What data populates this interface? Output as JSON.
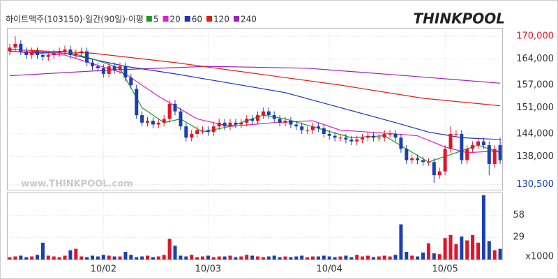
{
  "chart_data": {
    "type": "candlestick",
    "title": "하이트맥주(103150)·일간(90일)·이평",
    "logo": "THINKPOOL",
    "watermark": "www.THINKPOOL.com",
    "up_color": "#e0142a",
    "down_color": "#1a3fb0",
    "categories": [
      null,
      null,
      null,
      null,
      null,
      null,
      null,
      null,
      null,
      null,
      null,
      null,
      null,
      null,
      null,
      null,
      null,
      "10/02",
      null,
      null,
      null,
      null,
      null,
      null,
      null,
      null,
      null,
      null,
      null,
      null,
      null,
      null,
      null,
      null,
      null,
      null,
      "10/03",
      null,
      null,
      null,
      null,
      null,
      null,
      null,
      null,
      null,
      null,
      null,
      null,
      null,
      null,
      null,
      null,
      null,
      null,
      null,
      null,
      null,
      "10/04",
      null,
      null,
      null,
      null,
      null,
      null,
      null,
      null,
      null,
      null,
      null,
      null,
      null,
      null,
      null,
      null,
      null,
      null,
      null,
      null,
      "10/05",
      null,
      null,
      null,
      null,
      null,
      null,
      null,
      null,
      null,
      null
    ],
    "open": [
      166000,
      167000,
      168000,
      166000,
      165000,
      166000,
      165000,
      164500,
      165000,
      165500,
      166000,
      166500,
      165000,
      165500,
      166000,
      163000,
      162000,
      161500,
      160000,
      162000,
      161000,
      162000,
      159000,
      156000,
      149000,
      147000,
      147500,
      146500,
      147000,
      148000,
      152000,
      150000,
      146000,
      143000,
      144000,
      145000,
      145000,
      144500,
      146000,
      147000,
      146000,
      147000,
      146500,
      147000,
      148000,
      147500,
      149000,
      150000,
      149000,
      148000,
      147000,
      147500,
      146500,
      146000,
      145000,
      145000,
      146000,
      145500,
      144000,
      143500,
      143000,
      143000,
      142500,
      142000,
      142500,
      143000,
      143500,
      143000,
      143000,
      144000,
      144000,
      143000,
      140000,
      137000,
      137500,
      137000,
      136500,
      136500,
      133000,
      134000,
      140000,
      144000,
      144000,
      137000,
      140000,
      141000,
      142000,
      141000,
      136000,
      141000
    ],
    "high": [
      168000,
      170000,
      169000,
      167000,
      167000,
      167000,
      166000,
      166000,
      166500,
      167000,
      167500,
      167500,
      166500,
      167000,
      167000,
      164000,
      163000,
      162500,
      163000,
      163000,
      163000,
      163000,
      160000,
      157000,
      150000,
      148500,
      148500,
      148000,
      149000,
      153000,
      153000,
      151000,
      147000,
      145000,
      146000,
      146000,
      146000,
      147000,
      148000,
      148000,
      148000,
      148000,
      148000,
      149000,
      149000,
      150000,
      151000,
      151000,
      150000,
      149000,
      148500,
      148500,
      147500,
      147000,
      146000,
      147000,
      147000,
      146500,
      145000,
      144500,
      144000,
      144000,
      143500,
      143500,
      144000,
      144500,
      144500,
      144000,
      145000,
      145000,
      145000,
      144000,
      141000,
      138500,
      138500,
      138000,
      137500,
      137500,
      135000,
      141000,
      146000,
      145000,
      145000,
      141000,
      142000,
      143000,
      143000,
      142000,
      141000,
      143000
    ],
    "low": [
      165000,
      166000,
      165000,
      164000,
      164000,
      164000,
      163500,
      163500,
      164000,
      164500,
      165000,
      164000,
      164000,
      164500,
      162000,
      161000,
      160500,
      159000,
      159000,
      160000,
      160000,
      158000,
      156000,
      148000,
      146000,
      146000,
      145500,
      145500,
      146000,
      147000,
      149000,
      145000,
      142000,
      142000,
      143000,
      144000,
      143500,
      143500,
      145000,
      145000,
      145000,
      145500,
      145500,
      146000,
      146500,
      146500,
      148000,
      148000,
      147000,
      146000,
      146000,
      145500,
      145000,
      144000,
      144000,
      144000,
      144500,
      143000,
      142500,
      142000,
      142000,
      141500,
      141000,
      141000,
      141500,
      142000,
      142000,
      142000,
      142000,
      143000,
      142000,
      139000,
      136000,
      136000,
      136000,
      135500,
      135500,
      131000,
      132000,
      133000,
      139000,
      143000,
      136000,
      136000,
      139000,
      140000,
      140000,
      133000,
      135000,
      136000
    ],
    "close": [
      167000,
      168000,
      166000,
      165000,
      166000,
      165000,
      164500,
      165000,
      165500,
      166000,
      166500,
      165000,
      165500,
      166000,
      163000,
      162000,
      161500,
      160000,
      162000,
      161000,
      162000,
      159000,
      157000,
      149000,
      147000,
      147500,
      146500,
      147000,
      148000,
      152000,
      150000,
      146000,
      143000,
      144000,
      145000,
      145000,
      144500,
      146000,
      147000,
      146000,
      147000,
      146500,
      147000,
      148000,
      147500,
      149000,
      150000,
      149000,
      148000,
      147000,
      147500,
      146500,
      146000,
      145000,
      145000,
      146000,
      145500,
      144000,
      143500,
      143000,
      143000,
      142500,
      142000,
      142500,
      143000,
      143500,
      143000,
      143000,
      144000,
      144000,
      143000,
      140000,
      137000,
      137500,
      137000,
      136500,
      136500,
      133000,
      134000,
      140000,
      144000,
      144000,
      137000,
      140000,
      141000,
      142000,
      141000,
      136000,
      140000,
      137000
    ],
    "ylim": [
      129500,
      171500
    ],
    "yticks": [
      {
        "value": 170000,
        "label": "170,000"
      },
      {
        "value": 164000,
        "label": "164,000"
      },
      {
        "value": 157000,
        "label": "157,000"
      },
      {
        "value": 151000,
        "label": "151,000"
      },
      {
        "value": 144000,
        "label": "144,000"
      },
      {
        "value": 138000,
        "label": "138,000"
      },
      {
        "value": 130500,
        "label": "130,500"
      }
    ],
    "series": [
      {
        "name": "5",
        "color": "#1a9a1a",
        "x": [
          4,
          10,
          15,
          20,
          24,
          28,
          31,
          35,
          40,
          46,
          50,
          56,
          62,
          68,
          72,
          76,
          80,
          85,
          89
        ],
        "values": [
          166000,
          166000,
          164000,
          161500,
          151000,
          147000,
          148000,
          144500,
          146000,
          149000,
          148000,
          145500,
          143000,
          143500,
          140000,
          136500,
          138500,
          141000,
          139000
        ]
      },
      {
        "name": "20",
        "color": "#e020d0",
        "x": [
          0,
          10,
          21,
          27,
          34,
          40,
          48,
          55,
          60,
          70,
          74,
          79,
          83,
          89
        ],
        "values": [
          166000,
          165000,
          160000,
          154000,
          148000,
          146000,
          147000,
          147500,
          145000,
          144000,
          143500,
          140500,
          139000,
          139500
        ]
      },
      {
        "name": "60",
        "color": "#2030c0",
        "x": [
          0,
          10,
          21,
          30,
          40,
          50,
          60,
          70,
          76,
          82,
          89
        ],
        "values": [
          166000,
          165500,
          162000,
          160000,
          157500,
          155000,
          151000,
          147000,
          144500,
          143000,
          142500
        ]
      },
      {
        "name": "120",
        "color": "#e02010",
        "x": [
          0,
          15,
          30,
          45,
          60,
          75,
          89
        ],
        "values": [
          166500,
          165500,
          163000,
          160000,
          157000,
          153500,
          151500
        ]
      },
      {
        "name": "240",
        "color": "#9a20c0",
        "x": [
          0,
          18,
          36,
          54,
          72,
          89
        ],
        "values": [
          159500,
          161000,
          162000,
          161500,
          159500,
          157500
        ]
      }
    ],
    "volume": {
      "values": [
        3,
        4,
        5,
        3,
        4,
        6,
        22,
        5,
        4,
        3,
        5,
        12,
        14,
        4,
        3,
        5,
        4,
        6,
        5,
        4,
        4,
        10,
        6,
        3,
        4,
        5,
        3,
        4,
        6,
        27,
        18,
        5,
        4,
        6,
        3,
        4,
        5,
        3,
        4,
        4,
        5,
        3,
        4,
        6,
        5,
        4,
        3,
        4,
        5,
        3,
        4,
        3,
        4,
        5,
        3,
        4,
        4,
        5,
        4,
        3,
        4,
        5,
        3,
        6,
        4,
        5,
        3,
        4,
        5,
        4,
        6,
        46,
        10,
        5,
        4,
        9,
        21,
        8,
        7,
        28,
        32,
        20,
        30,
        25,
        32,
        22,
        84,
        24,
        12,
        14
      ],
      "ylim": [
        0,
        84
      ],
      "yticks": [
        29,
        58
      ],
      "unit_label": "x1000"
    }
  }
}
